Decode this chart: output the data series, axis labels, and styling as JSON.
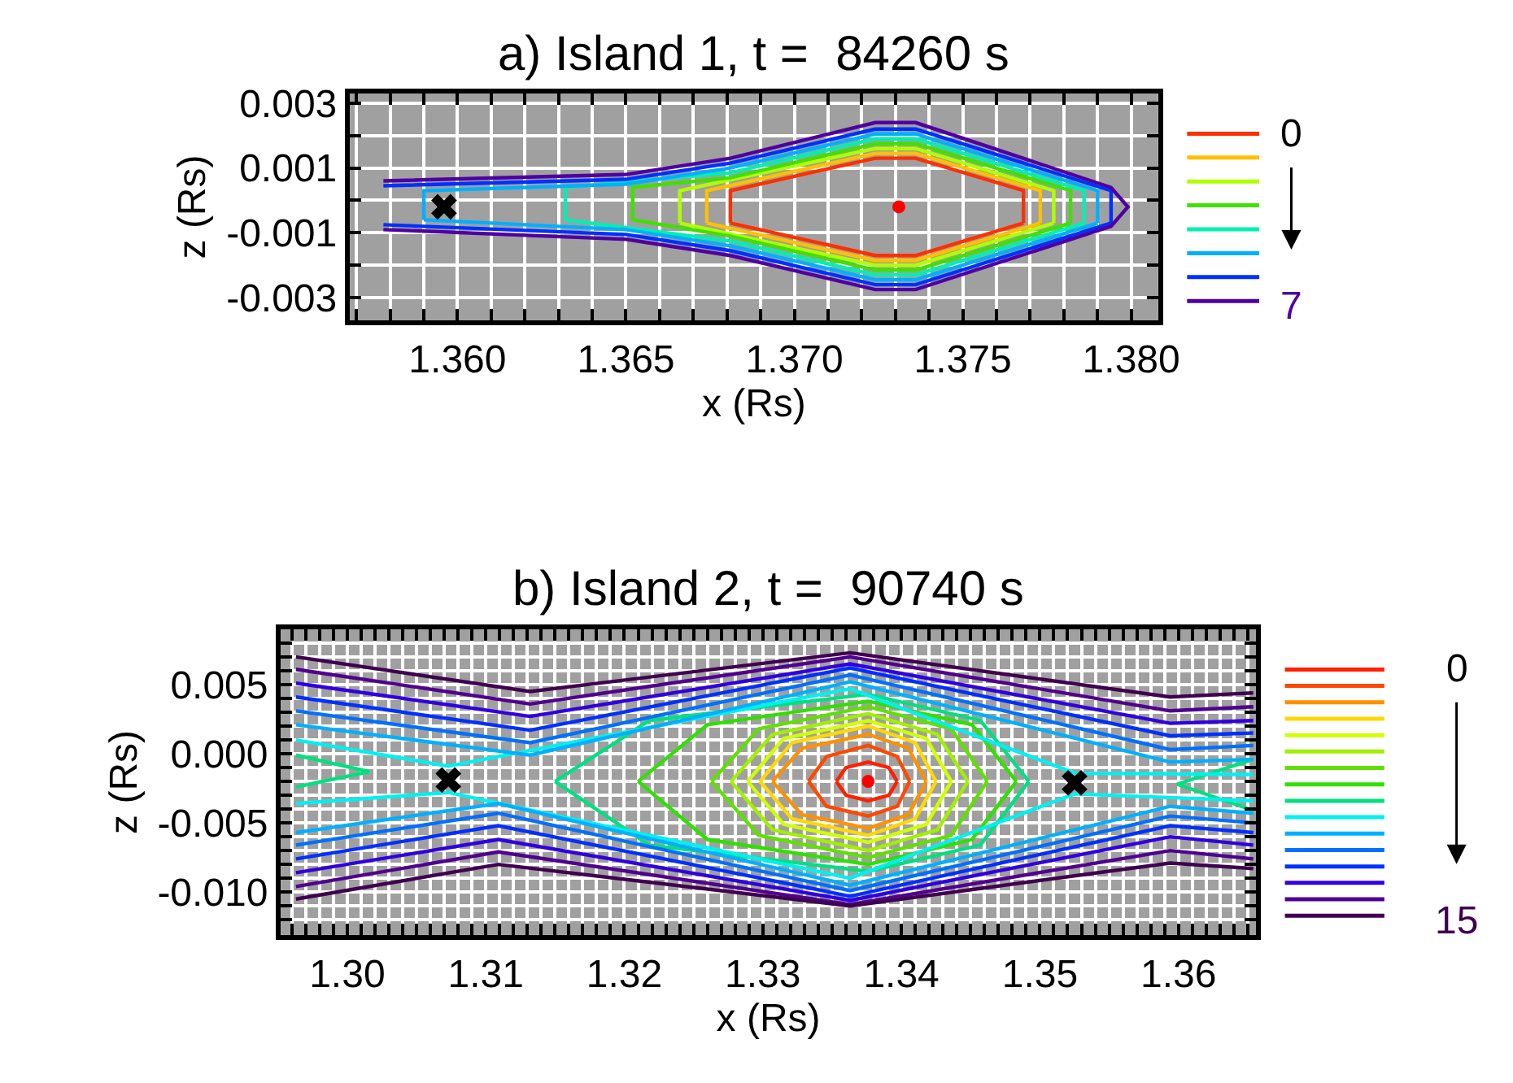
{
  "chart_data": [
    {
      "type": "line",
      "title": "a) Island 1, t =  84260 s",
      "xlabel": "x (Rs)",
      "ylabel": "z (Rs)",
      "grid": true,
      "legend": "right",
      "xlim": [
        1.3568,
        1.3808
      ],
      "ylim": [
        -0.0037,
        0.0033
      ],
      "xticks": [
        {
          "value": 1.357,
          "label": null
        },
        {
          "value": 1.358,
          "label": null
        },
        {
          "value": 1.359,
          "label": null
        },
        {
          "value": 1.36,
          "label": "1.360"
        },
        {
          "value": 1.361,
          "label": null
        },
        {
          "value": 1.362,
          "label": null
        },
        {
          "value": 1.363,
          "label": null
        },
        {
          "value": 1.364,
          "label": null
        },
        {
          "value": 1.365,
          "label": "1.365"
        },
        {
          "value": 1.366,
          "label": null
        },
        {
          "value": 1.367,
          "label": null
        },
        {
          "value": 1.368,
          "label": null
        },
        {
          "value": 1.369,
          "label": null
        },
        {
          "value": 1.37,
          "label": "1.370"
        },
        {
          "value": 1.371,
          "label": null
        },
        {
          "value": 1.372,
          "label": null
        },
        {
          "value": 1.373,
          "label": null
        },
        {
          "value": 1.374,
          "label": null
        },
        {
          "value": 1.375,
          "label": "1.375"
        },
        {
          "value": 1.376,
          "label": null
        },
        {
          "value": 1.377,
          "label": null
        },
        {
          "value": 1.378,
          "label": null
        },
        {
          "value": 1.379,
          "label": null
        },
        {
          "value": 1.38,
          "label": "1.380"
        }
      ],
      "yticks": [
        -0.003,
        {
          "value": -0.002,
          "label": null
        },
        -0.001,
        {
          "value": 0,
          "label": null
        },
        0.001,
        {
          "value": 0.002,
          "label": null
        },
        0.003
      ],
      "series": [
        {
          "name": "0",
          "color": "#ff3000",
          "x": [
            1.3681,
            1.3681,
            1.3724,
            1.3736,
            1.3768,
            1.3768,
            null,
            1.3681,
            1.3724,
            1.3736,
            1.3768
          ],
          "values": [
            -0.0007,
            0.0003,
            0.0013,
            0.0013,
            0.0003,
            -0.0007,
            null,
            -0.0007,
            -0.0017,
            -0.0017,
            -0.0007
          ]
        },
        {
          "color": "#ffc000",
          "x": [
            1.3674,
            1.3674,
            1.3724,
            1.3736,
            1.3773,
            1.3773,
            null,
            1.3674,
            1.3724,
            1.3736,
            1.3773
          ],
          "values": [
            -0.0007,
            0.0003,
            0.00145,
            0.00145,
            0.0003,
            -0.0007,
            null,
            -0.0007,
            -0.00185,
            -0.00185,
            -0.0007
          ]
        },
        {
          "color": "#b0ff00",
          "x": [
            1.3666,
            1.3666,
            1.3724,
            1.3736,
            1.3777,
            1.3777,
            null,
            1.3666,
            1.3724,
            1.3736,
            1.3777
          ],
          "values": [
            -0.0007,
            0.0003,
            0.0016,
            0.0016,
            0.0003,
            -0.0007,
            null,
            -0.0007,
            -0.002,
            -0.002,
            -0.0007
          ]
        },
        {
          "color": "#40e000",
          "x": [
            1.3652,
            1.3652,
            1.3681,
            1.3724,
            1.3736,
            1.3782,
            1.3782,
            null,
            1.3652,
            1.3681,
            1.3724,
            1.3736,
            1.3782
          ],
          "values": [
            -0.0006,
            0.0004,
            0.0007,
            0.00175,
            0.00175,
            0.0003,
            -0.0007,
            null,
            -0.0006,
            -0.0011,
            -0.00215,
            -0.00215,
            -0.0007
          ]
        },
        {
          "color": "#00f0b0",
          "x": [
            1.3632,
            1.3632,
            1.3681,
            1.3724,
            1.3736,
            1.3786,
            1.3786,
            null,
            1.3632,
            1.3681,
            1.3724,
            1.3736,
            1.3786
          ],
          "values": [
            -0.0006,
            0.0004,
            0.00085,
            0.0019,
            0.0019,
            0.0003,
            -0.0007,
            null,
            -0.0006,
            -0.00125,
            -0.0023,
            -0.0023,
            -0.0007
          ]
        },
        {
          "color": "#00b0ff",
          "x": [
            1.359,
            1.359,
            1.365,
            1.3681,
            1.3724,
            1.3736,
            1.379,
            1.379,
            null,
            1.359,
            1.365,
            1.3681,
            1.3724,
            1.3736,
            1.379
          ],
          "values": [
            -0.0006,
            0.0003,
            0.0005,
            0.001,
            0.00205,
            0.00205,
            0.0003,
            -0.0007,
            null,
            -0.0006,
            -0.0009,
            -0.0014,
            -0.00245,
            -0.00245,
            -0.0007
          ]
        },
        {
          "color": "#0030ff",
          "x": [
            1.3578,
            1.365,
            1.3681,
            1.3724,
            1.3736,
            1.3794,
            1.3794,
            1.3736,
            1.3724,
            1.3681,
            1.365,
            1.3578
          ],
          "values": [
            0.00045,
            0.00065,
            0.00115,
            0.0022,
            0.0022,
            0.0003,
            -0.0007,
            -0.0026,
            -0.0026,
            -0.00155,
            -0.00105,
            -0.00075
          ]
        },
        {
          "name": "7",
          "color": "#5000a0",
          "x": [
            1.3578,
            1.365,
            1.3681,
            1.3724,
            1.3736,
            1.3794,
            1.3799,
            1.3794,
            1.3736,
            1.3724,
            1.3681,
            1.365,
            1.3578
          ],
          "values": [
            0.0006,
            0.0008,
            0.0013,
            0.0024,
            0.0024,
            0.0004,
            -0.0002,
            -0.0008,
            -0.00275,
            -0.00275,
            -0.0017,
            -0.0012,
            -0.0009
          ]
        },
        {
          "type": "scatter",
          "marker": "cross",
          "color": "#000000",
          "x": [
            1.3596
          ],
          "values": [
            -0.0002
          ]
        },
        {
          "type": "scatter",
          "marker": "circle",
          "color": "#ff0000",
          "x": [
            1.3731
          ],
          "values": [
            -0.0002
          ]
        }
      ]
    },
    {
      "type": "line",
      "title": "b) Island 2, t =  90740 s",
      "xlabel": "x (Rs)",
      "ylabel": "z (Rs)",
      "grid": true,
      "legend": "right",
      "xlim": [
        1.2952,
        1.3656
      ],
      "ylim": [
        -0.0131,
        0.009
      ],
      "xticks": [
        {
          "value": 1.296,
          "label": null
        },
        {
          "value": 1.297,
          "label": null
        },
        {
          "value": 1.298,
          "label": null
        },
        {
          "value": 1.299,
          "label": null
        },
        {
          "value": 1.3,
          "label": "1.30"
        },
        {
          "value": 1.301,
          "label": null
        },
        {
          "value": 1.302,
          "label": null
        },
        {
          "value": 1.303,
          "label": null
        },
        {
          "value": 1.304,
          "label": null
        },
        {
          "value": 1.305,
          "label": null
        },
        {
          "value": 1.306,
          "label": null
        },
        {
          "value": 1.307,
          "label": null
        },
        {
          "value": 1.308,
          "label": null
        },
        {
          "value": 1.309,
          "label": null
        },
        {
          "value": 1.31,
          "label": "1.31"
        },
        {
          "value": 1.311,
          "label": null
        },
        {
          "value": 1.312,
          "label": null
        },
        {
          "value": 1.313,
          "label": null
        },
        {
          "value": 1.314,
          "label": null
        },
        {
          "value": 1.315,
          "label": null
        },
        {
          "value": 1.316,
          "label": null
        },
        {
          "value": 1.317,
          "label": null
        },
        {
          "value": 1.318,
          "label": null
        },
        {
          "value": 1.319,
          "label": null
        },
        {
          "value": 1.32,
          "label": "1.32"
        },
        {
          "value": 1.321,
          "label": null
        },
        {
          "value": 1.322,
          "label": null
        },
        {
          "value": 1.323,
          "label": null
        },
        {
          "value": 1.324,
          "label": null
        },
        {
          "value": 1.325,
          "label": null
        },
        {
          "value": 1.326,
          "label": null
        },
        {
          "value": 1.327,
          "label": null
        },
        {
          "value": 1.328,
          "label": null
        },
        {
          "value": 1.329,
          "label": null
        },
        {
          "value": 1.33,
          "label": "1.33"
        },
        {
          "value": 1.331,
          "label": null
        },
        {
          "value": 1.332,
          "label": null
        },
        {
          "value": 1.333,
          "label": null
        },
        {
          "value": 1.334,
          "label": null
        },
        {
          "value": 1.335,
          "label": null
        },
        {
          "value": 1.336,
          "label": null
        },
        {
          "value": 1.337,
          "label": null
        },
        {
          "value": 1.338,
          "label": null
        },
        {
          "value": 1.339,
          "label": null
        },
        {
          "value": 1.34,
          "label": "1.34"
        },
        {
          "value": 1.341,
          "label": null
        },
        {
          "value": 1.342,
          "label": null
        },
        {
          "value": 1.343,
          "label": null
        },
        {
          "value": 1.344,
          "label": null
        },
        {
          "value": 1.345,
          "label": null
        },
        {
          "value": 1.346,
          "label": null
        },
        {
          "value": 1.347,
          "label": null
        },
        {
          "value": 1.348,
          "label": null
        },
        {
          "value": 1.349,
          "label": null
        },
        {
          "value": 1.35,
          "label": "1.35"
        },
        {
          "value": 1.351,
          "label": null
        },
        {
          "value": 1.352,
          "label": null
        },
        {
          "value": 1.353,
          "label": null
        },
        {
          "value": 1.354,
          "label": null
        },
        {
          "value": 1.355,
          "label": null
        },
        {
          "value": 1.356,
          "label": null
        },
        {
          "value": 1.357,
          "label": null
        },
        {
          "value": 1.358,
          "label": null
        },
        {
          "value": 1.359,
          "label": null
        },
        {
          "value": 1.36,
          "label": "1.36"
        },
        {
          "value": 1.361,
          "label": null
        },
        {
          "value": 1.362,
          "label": null
        },
        {
          "value": 1.363,
          "label": null
        },
        {
          "value": 1.364,
          "label": null
        },
        {
          "value": 1.365,
          "label": null
        }
      ],
      "yticks": [
        {
          "value": -0.013,
          "label": null
        },
        {
          "value": -0.012,
          "label": null
        },
        {
          "value": -0.011,
          "label": null
        },
        {
          "value": -0.01,
          "label": "-0.010"
        },
        {
          "value": -0.009,
          "label": null
        },
        {
          "value": -0.008,
          "label": null
        },
        {
          "value": -0.007,
          "label": null
        },
        {
          "value": -0.006,
          "label": null
        },
        {
          "value": -0.005,
          "label": "-0.005"
        },
        {
          "value": -0.004,
          "label": null
        },
        {
          "value": -0.003,
          "label": null
        },
        {
          "value": -0.002,
          "label": null
        },
        {
          "value": -0.001,
          "label": null
        },
        {
          "value": 0,
          "label": "0.000"
        },
        {
          "value": 0.001,
          "label": null
        },
        {
          "value": 0.002,
          "label": null
        },
        {
          "value": 0.003,
          "label": null
        },
        {
          "value": 0.004,
          "label": null
        },
        0.005,
        {
          "value": 0.006,
          "label": null
        },
        {
          "value": 0.007,
          "label": null
        },
        {
          "value": 0.008,
          "label": null
        }
      ],
      "series": [
        {
          "name": "0",
          "color": "#ff2000",
          "x": [
            1.3353,
            1.336,
            1.3376,
            1.3391,
            1.3397,
            null,
            1.3353,
            1.336,
            1.3376,
            1.3391,
            1.3397
          ],
          "values": [
            -0.002,
            -0.001,
            -0.0006,
            -0.001,
            -0.002,
            null,
            -0.002,
            -0.003,
            -0.0034,
            -0.003,
            -0.002
          ]
        },
        {
          "color": "#ff4800",
          "x": [
            1.3333,
            1.3346,
            1.3376,
            1.3397,
            1.3406,
            null,
            1.3333,
            1.3346,
            1.3376,
            1.3397,
            1.3406
          ],
          "values": [
            -0.002,
            -0.0002,
            0.0006,
            -0.0002,
            -0.002,
            null,
            -0.002,
            -0.0038,
            -0.0045,
            -0.0038,
            -0.002
          ]
        },
        {
          "color": "#ff9000",
          "x": [
            1.3307,
            1.3328,
            1.3376,
            1.3405,
            1.3418,
            null,
            1.3307,
            1.3328,
            1.3376,
            1.3405,
            1.3418
          ],
          "values": [
            -0.002,
            0.0004,
            0.0014,
            0.0004,
            -0.002,
            null,
            -0.002,
            -0.0044,
            -0.0054,
            -0.0044,
            -0.002
          ]
        },
        {
          "color": "#ffd800",
          "x": [
            1.3298,
            1.3321,
            1.3376,
            1.341,
            1.3425,
            null,
            1.3298,
            1.3321,
            1.3376,
            1.341,
            1.3425
          ],
          "values": [
            -0.002,
            0.0008,
            0.002,
            0.0008,
            -0.002,
            null,
            -0.002,
            -0.0047,
            -0.0059,
            -0.0047,
            -0.002
          ]
        },
        {
          "color": "#d0ff00",
          "x": [
            1.3289,
            1.3315,
            1.3376,
            1.3418,
            1.3436,
            null,
            1.3289,
            1.3315,
            1.3376,
            1.3418,
            1.3436
          ],
          "values": [
            -0.002,
            0.0011,
            0.0024,
            0.0011,
            -0.002,
            null,
            -0.002,
            -0.0051,
            -0.0064,
            -0.0051,
            -0.002
          ]
        },
        {
          "color": "#a0f000",
          "x": [
            1.3277,
            1.3307,
            1.3376,
            1.3426,
            1.3448,
            null,
            1.3277,
            1.3307,
            1.3376,
            1.3426,
            1.3448
          ],
          "values": [
            -0.002,
            0.0014,
            0.0029,
            0.0014,
            -0.002,
            null,
            -0.002,
            -0.0055,
            -0.007,
            -0.0055,
            -0.002
          ]
        },
        {
          "color": "#60e000",
          "x": [
            1.3263,
            1.3297,
            1.3376,
            1.3436,
            1.3462,
            null,
            1.3263,
            1.3297,
            1.3376,
            1.3436,
            1.3462
          ],
          "values": [
            -0.002,
            0.0018,
            0.0034,
            0.0018,
            -0.002,
            null,
            -0.002,
            -0.0059,
            -0.0075,
            -0.0059,
            -0.002
          ]
        },
        {
          "color": "#30e000",
          "x": [
            1.321,
            1.326,
            1.3376,
            1.3451,
            1.3483,
            null,
            1.321,
            1.326,
            1.3376,
            1.3451,
            1.3483
          ],
          "values": [
            -0.002,
            0.0021,
            0.0038,
            0.0021,
            -0.002,
            null,
            -0.002,
            -0.0062,
            -0.008,
            -0.0062,
            -0.002
          ]
        },
        {
          "color": "#00e080",
          "x": [
            1.315,
            1.3218,
            1.3376,
            1.3457,
            1.3492,
            null,
            1.315,
            1.3218,
            1.3376,
            1.3457,
            1.3492,
            null,
            1.2963,
            1.3016,
            1.2963,
            null,
            1.3654,
            1.3599,
            1.3654
          ],
          "values": [
            -0.002,
            0.0024,
            0.0043,
            0.0024,
            -0.002,
            null,
            -0.002,
            -0.0066,
            -0.0085,
            -0.0066,
            -0.002,
            null,
            -0.0001,
            -0.0013,
            -0.0024,
            null,
            -0.0004,
            -0.0022,
            -0.0041
          ]
        },
        {
          "color": "#00f0f0",
          "x": [
            1.2963,
            1.3073,
            1.3363,
            1.3525,
            1.3654,
            null,
            1.2963,
            1.3073,
            1.3363,
            1.3525,
            1.3654
          ],
          "values": [
            0.001,
            -0.0009,
            0.0047,
            -0.0014,
            -0.0015,
            null,
            -0.0036,
            -0.0028,
            -0.009,
            -0.0029,
            -0.0034
          ]
        },
        {
          "color": "#00b0ff",
          "x": [
            1.2963,
            1.3132,
            1.3363,
            1.3594,
            1.3654,
            null,
            1.2963,
            1.3109,
            1.3363,
            1.3594,
            1.3654
          ],
          "values": [
            0.0021,
            -0.0001,
            0.0052,
            -0.0006,
            -0.0004,
            null,
            -0.0057,
            -0.0036,
            -0.0095,
            -0.0038,
            -0.0043
          ]
        },
        {
          "color": "#0070ff",
          "x": [
            1.2963,
            1.3132,
            1.3363,
            1.3594,
            1.3654,
            null,
            1.2963,
            1.3109,
            1.3363,
            1.3594,
            1.3654
          ],
          "values": [
            0.0031,
            0.0008,
            0.0057,
            0.0003,
            0.0006,
            null,
            -0.0066,
            -0.0043,
            -0.0099,
            -0.0045,
            -0.005
          ]
        },
        {
          "color": "#0030ff",
          "x": [
            1.2963,
            1.3132,
            1.3363,
            1.3594,
            1.3654,
            null,
            1.2963,
            1.3109,
            1.3363,
            1.3594,
            1.3654
          ],
          "values": [
            0.0041,
            0.0017,
            0.0062,
            0.0013,
            0.0015,
            null,
            -0.0076,
            -0.0052,
            -0.0103,
            -0.0052,
            -0.0057
          ]
        },
        {
          "color": "#3000e0",
          "x": [
            1.2963,
            1.3132,
            1.3363,
            1.3594,
            1.3654,
            null,
            1.2963,
            1.3109,
            1.3363,
            1.3594,
            1.3654
          ],
          "values": [
            0.0051,
            0.0027,
            0.0065,
            0.0022,
            0.0024,
            null,
            -0.0086,
            -0.0062,
            -0.0106,
            -0.006,
            -0.0066
          ]
        },
        {
          "color": "#500090",
          "x": [
            1.2963,
            1.3132,
            1.3363,
            1.3594,
            1.3654,
            null,
            1.2963,
            1.3109,
            1.3363,
            1.3594,
            1.3654
          ],
          "values": [
            0.0061,
            0.0036,
            0.007,
            0.0031,
            0.0034,
            null,
            -0.0096,
            -0.0071,
            -0.0109,
            -0.007,
            -0.0076
          ]
        },
        {
          "name": "15",
          "color": "#400050",
          "x": [
            1.2963,
            1.3132,
            1.3363,
            1.3594,
            1.3654,
            null,
            1.2963,
            1.3109,
            1.3363,
            1.3594,
            1.3654
          ],
          "values": [
            0.007,
            0.0045,
            0.0073,
            0.0041,
            0.0044,
            null,
            -0.0105,
            -0.008,
            -0.011,
            -0.0079,
            -0.0083
          ]
        },
        {
          "type": "scatter",
          "marker": "cross",
          "color": "#000000",
          "x": [
            1.3073,
            1.3525
          ],
          "values": [
            -0.0019,
            -0.0021
          ]
        },
        {
          "type": "scatter",
          "marker": "circle",
          "color": "#ff0000",
          "x": [
            1.3376
          ],
          "values": [
            -0.002
          ]
        }
      ]
    }
  ]
}
